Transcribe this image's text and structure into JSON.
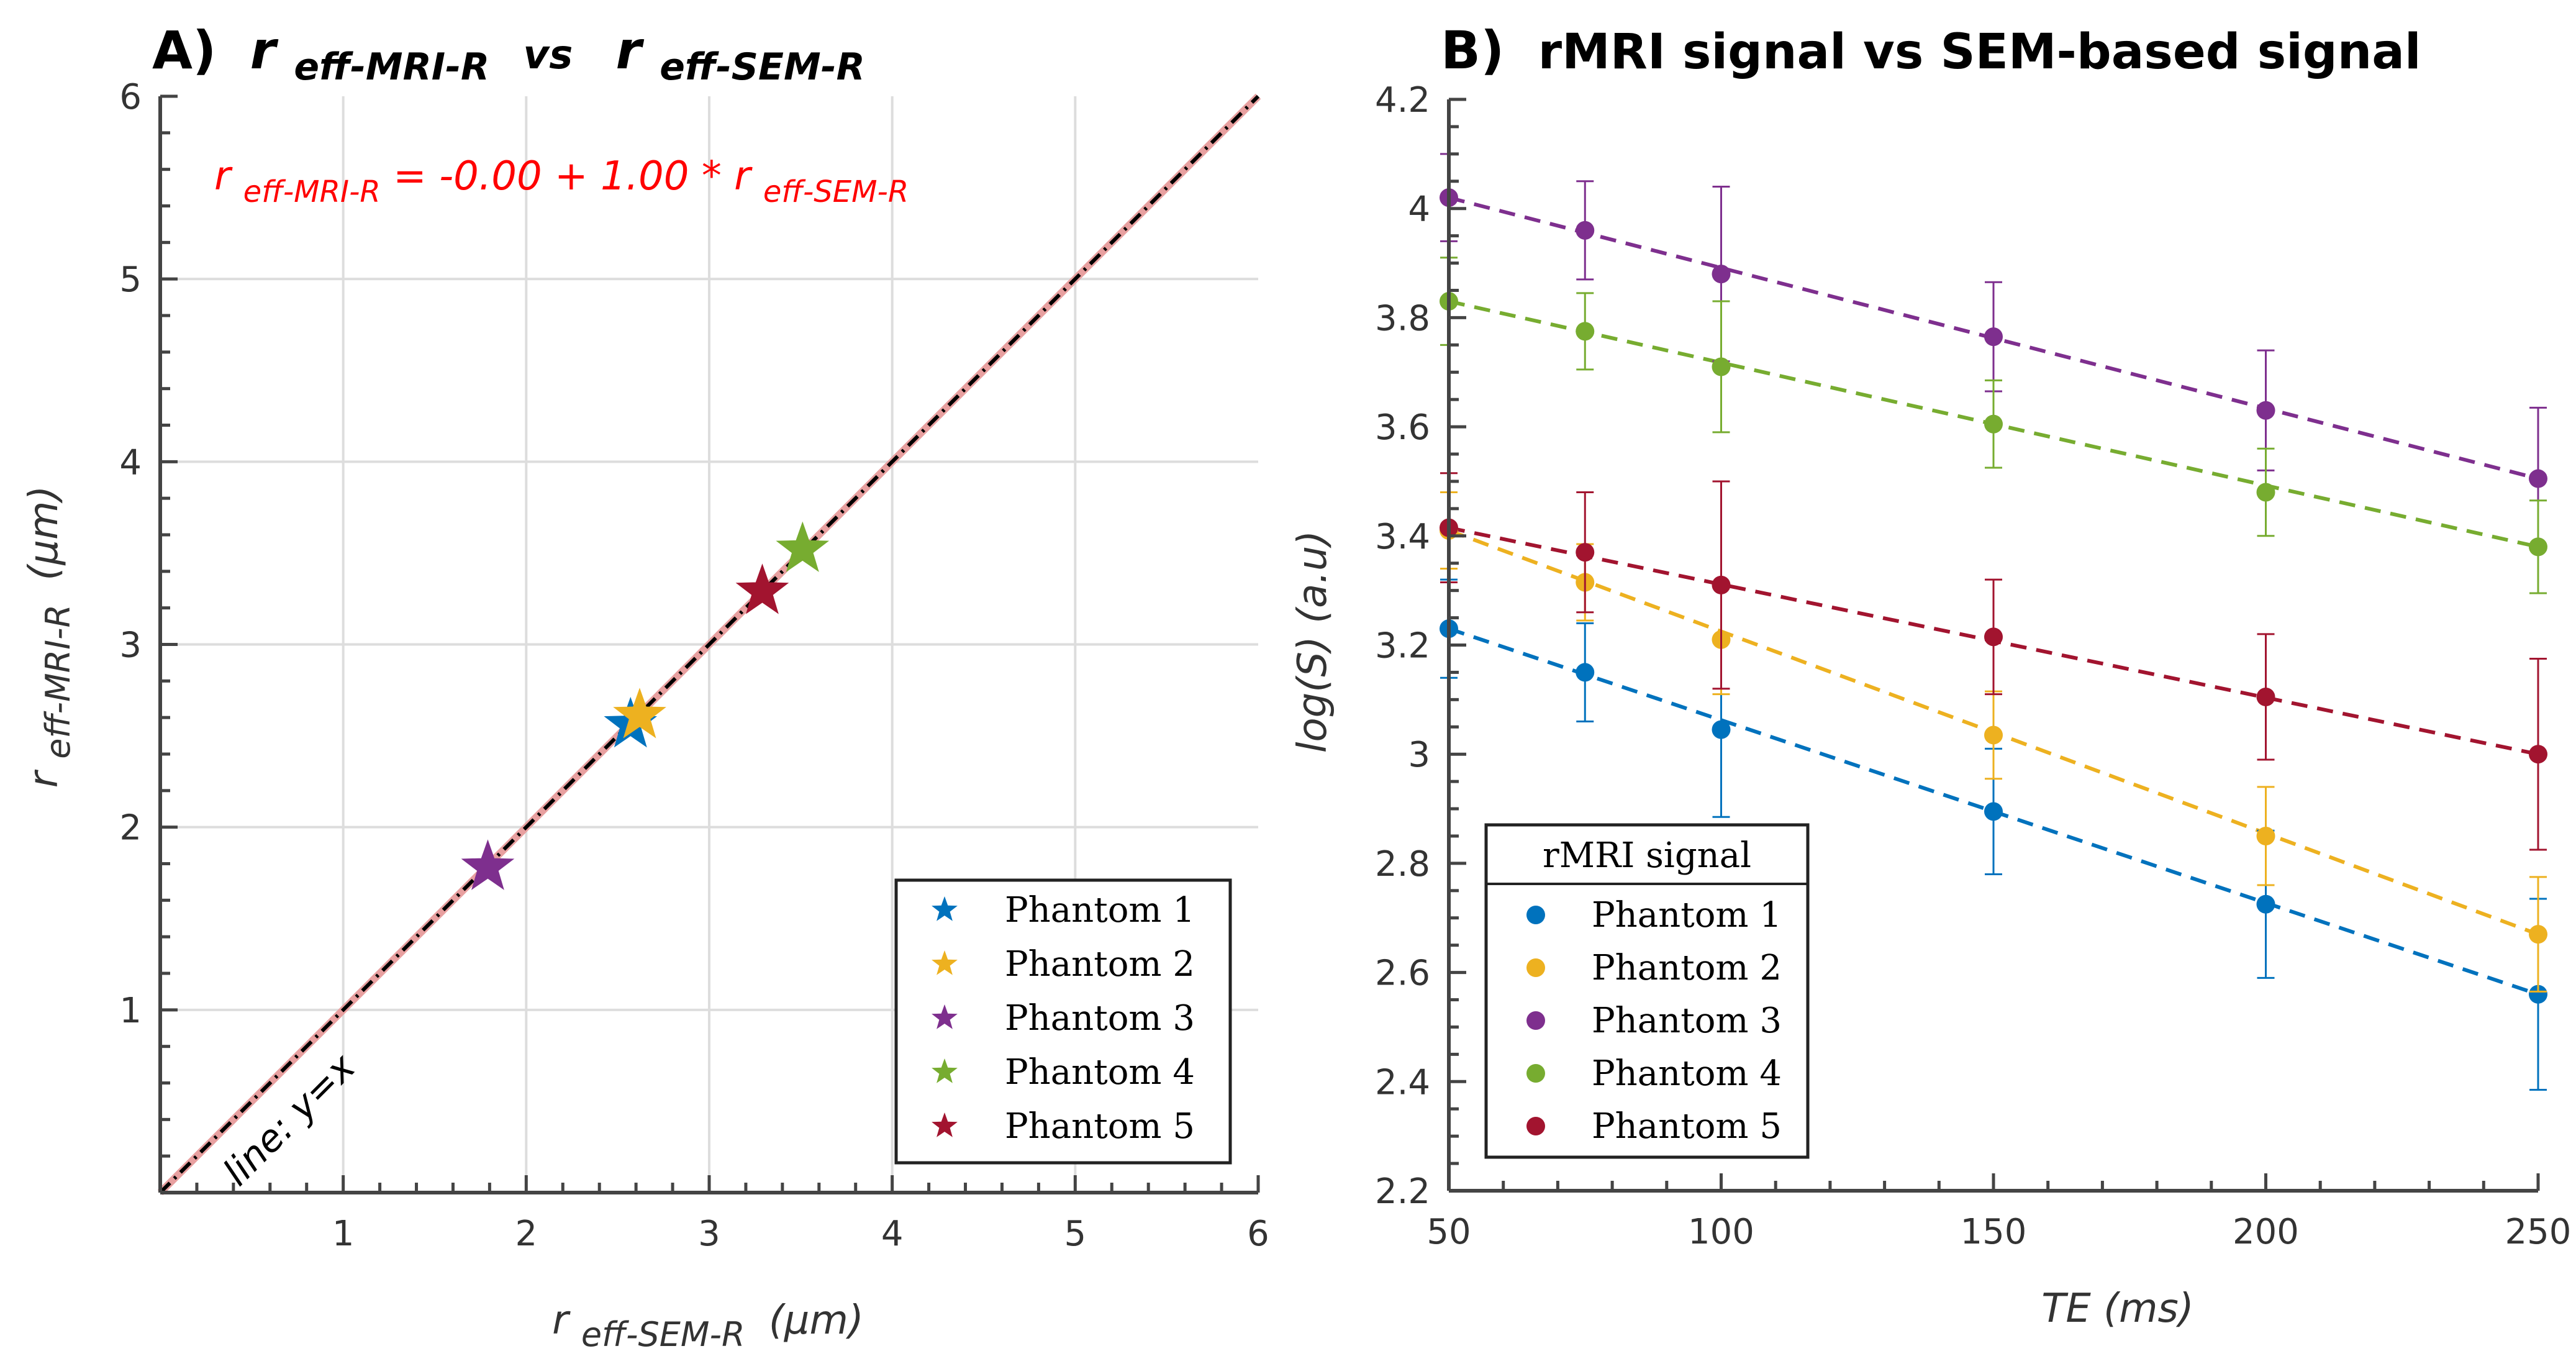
{
  "panel_a": {
    "title_prefix": "A)",
    "title_r": "r",
    "title_sub1": "eff-MRI-R",
    "title_vs": "vs",
    "title_sub2": "eff-SEM-R",
    "annotation_r1": "r",
    "annotation_sub1": "eff-MRI-R",
    "annotation_mid": " = -0.00 + 1.00 * r",
    "annotation_sub2": "eff-SEM-R",
    "line_label": "line: y=x",
    "ylabel_r": "r",
    "ylabel_sub": "eff-MRI-R",
    "ylabel_unit": "(μm)",
    "xlabel_r": "r",
    "xlabel_sub": "eff-SEM-R",
    "xlabel_unit": "(μm)"
  },
  "panel_b": {
    "title_prefix": "B)",
    "title_text": "rMRI signal vs SEM-based signal",
    "ylabel": "log(S) (a.u)",
    "xlabel": "TE (ms)",
    "legend_title": "rMRI signal"
  },
  "colors": {
    "phantom1": "#0072BD",
    "phantom2": "#EDB120",
    "phantom3": "#7E2F8E",
    "phantom4": "#77AC30",
    "phantom5": "#A2142F",
    "identity_line": "#E8A0A0",
    "axis": "#444444",
    "grid": "#dddddd",
    "annotation": "#FF0000"
  },
  "chart_data": [
    {
      "type": "scatter",
      "xlim": [
        0,
        6
      ],
      "ylim": [
        0,
        6
      ],
      "x_ticks": [
        1,
        2,
        3,
        4,
        5,
        6
      ],
      "y_ticks": [
        1,
        2,
        3,
        4,
        5,
        6
      ],
      "grid": true,
      "legend_position": "bottom-right",
      "fit": {
        "intercept": 0.0,
        "slope": 1.0
      },
      "identity_line": true,
      "series": [
        {
          "name": "Phantom 1",
          "x": [
            2.57
          ],
          "y": [
            2.56
          ]
        },
        {
          "name": "Phantom 2",
          "x": [
            2.62
          ],
          "y": [
            2.61
          ]
        },
        {
          "name": "Phantom 3",
          "x": [
            1.79
          ],
          "y": [
            1.78
          ]
        },
        {
          "name": "Phantom 4",
          "x": [
            3.51
          ],
          "y": [
            3.52
          ]
        },
        {
          "name": "Phantom 5",
          "x": [
            3.29
          ],
          "y": [
            3.29
          ]
        }
      ]
    },
    {
      "type": "scatter",
      "xlim": [
        50,
        250
      ],
      "ylim": [
        2.2,
        4.2
      ],
      "x_ticks": [
        50,
        100,
        150,
        200,
        250
      ],
      "y_ticks": [
        2.2,
        2.4,
        2.6,
        2.8,
        3,
        3.2,
        3.4,
        3.6,
        3.8,
        4,
        4.2
      ],
      "y_tick_labels": [
        "2.2",
        "2.4",
        "2.6",
        "2.8",
        "3",
        "3.2",
        "3.4",
        "3.6",
        "3.8",
        "4",
        "4.2"
      ],
      "grid": false,
      "legend_position": "bottom-left",
      "x": [
        50,
        75,
        100,
        150,
        200,
        250
      ],
      "series": [
        {
          "name": "Phantom 1",
          "y": [
            3.23,
            3.15,
            3.045,
            2.895,
            2.725,
            2.56
          ],
          "err": [
            0.09,
            0.09,
            0.16,
            0.115,
            0.135,
            0.175
          ],
          "fit": [
            3.23,
            2.56
          ]
        },
        {
          "name": "Phantom 2",
          "y": [
            3.41,
            3.315,
            3.21,
            3.035,
            2.85,
            2.67
          ],
          "err": [
            0.07,
            0.07,
            0.1,
            0.08,
            0.09,
            0.105
          ],
          "fit": [
            3.41,
            2.67
          ]
        },
        {
          "name": "Phantom 3",
          "y": [
            4.02,
            3.96,
            3.88,
            3.765,
            3.63,
            3.505
          ],
          "err": [
            0.08,
            0.09,
            0.16,
            0.1,
            0.11,
            0.13
          ],
          "fit": [
            4.02,
            3.505
          ]
        },
        {
          "name": "Phantom 4",
          "y": [
            3.83,
            3.775,
            3.71,
            3.605,
            3.48,
            3.38
          ],
          "err": [
            0.08,
            0.07,
            0.12,
            0.08,
            0.08,
            0.085
          ],
          "fit": [
            3.83,
            3.38
          ]
        },
        {
          "name": "Phantom 5",
          "y": [
            3.415,
            3.37,
            3.31,
            3.215,
            3.105,
            3.0
          ],
          "err": [
            0.1,
            0.11,
            0.19,
            0.105,
            0.115,
            0.175
          ],
          "fit": [
            3.415,
            3.0
          ]
        }
      ]
    }
  ]
}
